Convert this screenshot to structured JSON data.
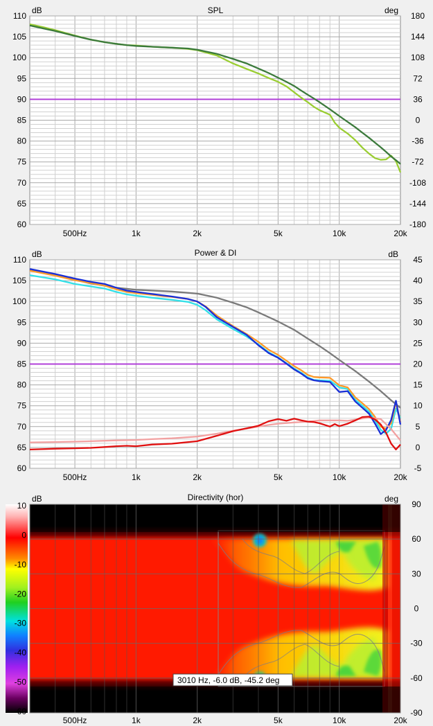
{
  "charts": [
    {
      "title": "SPL",
      "left_unit": "dB",
      "right_unit": "deg"
    },
    {
      "title": "Power & DI",
      "left_unit": "dB",
      "right_unit": "dB"
    },
    {
      "title": "Directivity (hor)",
      "left_unit": "dB",
      "right_unit": "deg",
      "tooltip": "3010 Hz, -6.0 dB, -45.2 deg"
    }
  ],
  "chart_data": [
    {
      "type": "line",
      "title": "SPL",
      "x_scale": "log",
      "xlim": [
        300,
        20000
      ],
      "x_ticks": [
        {
          "value": 500,
          "label": "500Hz"
        },
        {
          "value": 1000,
          "label": "1k"
        },
        {
          "value": 2000,
          "label": "2k"
        },
        {
          "value": 5000,
          "label": "5k"
        },
        {
          "value": 10000,
          "label": "10k"
        },
        {
          "value": 20000,
          "label": "20k"
        }
      ],
      "ylim": [
        60,
        110
      ],
      "y_ticks": [
        60,
        65,
        70,
        75,
        80,
        85,
        90,
        95,
        100,
        105,
        110
      ],
      "ylabel": "dB",
      "y2lim": [
        -180,
        180
      ],
      "y2_ticks": [
        -180,
        -144,
        -108,
        -72,
        -36,
        0,
        36,
        72,
        108,
        144,
        180
      ],
      "y2label": "deg",
      "grid": true,
      "hlines": [
        {
          "y": 90,
          "color": "#b040d8"
        }
      ],
      "series": [
        {
          "color": "#9acd32",
          "x": [
            300,
            350,
            400,
            500,
            600,
            700,
            800,
            900,
            1000,
            1200,
            1500,
            1800,
            2000,
            2500,
            3000,
            3500,
            4000,
            4500,
            5000,
            5500,
            6000,
            6500,
            7000,
            7500,
            8000,
            9000,
            9500,
            10000,
            11000,
            12000,
            13000,
            14000,
            15000,
            16000,
            17000,
            18000,
            19000,
            20000
          ],
          "y": [
            108,
            107.3,
            106.6,
            105.3,
            104.3,
            103.7,
            103.3,
            103,
            102.9,
            102.6,
            102.4,
            102.1,
            101.8,
            100.5,
            98.6,
            97.3,
            96.2,
            95.1,
            94.2,
            93.1,
            91.7,
            90.4,
            89.3,
            88.2,
            87.4,
            86.3,
            84.4,
            83.2,
            81.8,
            80.2,
            78.4,
            77,
            75.9,
            75.5,
            75.6,
            76.5,
            75.2,
            72.5
          ]
        },
        {
          "color": "#3b7a3b",
          "x": [
            300,
            350,
            400,
            500,
            600,
            700,
            800,
            900,
            1000,
            1200,
            1500,
            1800,
            2000,
            2500,
            3000,
            3500,
            4000,
            4500,
            5000,
            5500,
            6000,
            6500,
            7000,
            7500,
            8000,
            9000,
            10000,
            11000,
            12000,
            13000,
            14000,
            15000,
            16000,
            17000,
            18000,
            19000,
            20000
          ],
          "y": [
            107.7,
            107,
            106.4,
            105.2,
            104.3,
            103.7,
            103.3,
            103,
            102.8,
            102.6,
            102.4,
            102.2,
            101.9,
            100.9,
            99.7,
            98.6,
            97.4,
            96.3,
            95.2,
            94.2,
            93.2,
            92.1,
            91.1,
            90.2,
            89.3,
            87.6,
            86,
            84.6,
            83.3,
            82,
            80.8,
            79.6,
            78.5,
            77.4,
            76.3,
            75.4,
            74.5
          ]
        }
      ]
    },
    {
      "type": "line",
      "title": "Power & DI",
      "x_scale": "log",
      "xlim": [
        300,
        20000
      ],
      "x_ticks": [
        {
          "value": 500,
          "label": "500Hz"
        },
        {
          "value": 1000,
          "label": "1k"
        },
        {
          "value": 2000,
          "label": "2k"
        },
        {
          "value": 5000,
          "label": "5k"
        },
        {
          "value": 10000,
          "label": "10k"
        },
        {
          "value": 20000,
          "label": "20k"
        }
      ],
      "ylim": [
        60,
        110
      ],
      "y_ticks": [
        60,
        65,
        70,
        75,
        80,
        85,
        90,
        95,
        100,
        105,
        110
      ],
      "ylabel": "dB",
      "y2lim": [
        -5,
        45
      ],
      "y2_ticks": [
        -5,
        0,
        5,
        10,
        15,
        20,
        25,
        30,
        35,
        40,
        45
      ],
      "y2label": "dB",
      "grid": true,
      "hlines": [
        {
          "y": 85,
          "color": "#b040d8"
        }
      ],
      "series": [
        {
          "color": "#7a7a7a",
          "x": [
            300,
            400,
            500,
            600,
            800,
            1000,
            1500,
            2000,
            2500,
            3000,
            3500,
            4000,
            5000,
            6000,
            7000,
            8000,
            9000,
            10000,
            12000,
            14000,
            16000,
            18000,
            20000
          ],
          "y": [
            107.6,
            106.4,
            105.2,
            104.3,
            103.3,
            102.8,
            102.4,
            101.9,
            100.9,
            99.7,
            98.6,
            97.4,
            95.2,
            93.2,
            91.1,
            89.3,
            87.6,
            86,
            83.3,
            80.8,
            78.5,
            76.3,
            74.5
          ]
        },
        {
          "color": "#33e0e8",
          "x": [
            300,
            400,
            500,
            600,
            700,
            800,
            900,
            1000,
            1200,
            1500,
            1800,
            2000,
            2200,
            2500,
            3000,
            3500,
            4000,
            4500,
            5000,
            5500,
            6000,
            6500,
            7000,
            7500,
            8000,
            9000,
            10000,
            11000,
            12000,
            13000,
            14000,
            15000,
            16000,
            17000,
            18000,
            19000,
            20000
          ],
          "y": [
            106.3,
            105.3,
            104.2,
            103.6,
            103.1,
            102.3,
            101.7,
            101.4,
            100.9,
            100.4,
            99.9,
            99.2,
            97.9,
            95.7,
            93.4,
            91.6,
            89.7,
            87.8,
            86.6,
            85.2,
            83.9,
            82.9,
            81.8,
            81.2,
            81.1,
            81,
            79.4,
            79,
            76.4,
            75,
            73.6,
            71.5,
            69.2,
            68.3,
            69.5,
            74.3,
            72
          ]
        },
        {
          "color": "#ff9a2a",
          "x": [
            300,
            400,
            500,
            600,
            700,
            800,
            900,
            1000,
            1200,
            1500,
            1800,
            2000,
            2200,
            2500,
            3000,
            3500,
            4000,
            4500,
            5000,
            5500,
            6000,
            6500,
            7000,
            7500,
            8000,
            9000,
            10000,
            11000,
            12000,
            13000,
            14000,
            15000,
            16000,
            17000,
            18000,
            19000,
            20000
          ],
          "y": [
            107.4,
            106.2,
            105.1,
            104.4,
            103.8,
            102.9,
            102.3,
            102,
            101.6,
            101.1,
            100.6,
            100,
            98.8,
            96.6,
            94.1,
            92.2,
            90.3,
            88.4,
            87.2,
            85.8,
            84.5,
            83.5,
            82.4,
            81.9,
            81.8,
            81.7,
            79.9,
            79.4,
            77,
            75.6,
            74.2,
            72.3,
            70,
            69.5,
            70.8,
            75.8,
            71
          ]
        },
        {
          "color": "#1a2fd6",
          "x": [
            300,
            400,
            500,
            600,
            700,
            800,
            900,
            1000,
            1200,
            1500,
            1800,
            2000,
            2200,
            2500,
            3000,
            3500,
            4000,
            4500,
            5000,
            5500,
            6000,
            6500,
            7000,
            7500,
            8000,
            9000,
            10000,
            11000,
            12000,
            13000,
            14000,
            15000,
            16000,
            17000,
            18000,
            19000,
            20000
          ],
          "y": [
            107.8,
            106.6,
            105.5,
            104.7,
            104.2,
            103.3,
            102.6,
            102.3,
            101.8,
            101.2,
            100.6,
            100,
            98.7,
            96.2,
            93.9,
            92,
            89.5,
            87.6,
            86.5,
            85.1,
            83.7,
            82.7,
            81.6,
            81.1,
            80.9,
            80.7,
            78.3,
            78.5,
            76,
            74.5,
            73.1,
            70.7,
            68.2,
            69.2,
            71.6,
            76.2,
            70.5
          ]
        },
        {
          "color": "#f2a1a1",
          "x": [
            300,
            400,
            500,
            600,
            800,
            1000,
            1200,
            1500,
            2000,
            2500,
            3000,
            3500,
            4000,
            4500,
            5000,
            6000,
            7000,
            8000,
            9000,
            10000,
            11000,
            12000,
            14000,
            16000,
            18000,
            20000
          ],
          "y": [
            1.2,
            1.3,
            1.4,
            1.5,
            1.7,
            1.8,
            2.0,
            2.2,
            2.6,
            3.3,
            4.0,
            4.5,
            5.0,
            5.4,
            5.7,
            6.0,
            6.2,
            6.5,
            6.5,
            6.5,
            6.4,
            6.7,
            7.2,
            6.8,
            4.4,
            1.7
          ]
        },
        {
          "color": "#e01010",
          "x": [
            300,
            400,
            500,
            600,
            700,
            800,
            900,
            1000,
            1200,
            1500,
            2000,
            2500,
            3000,
            3500,
            4000,
            4500,
            5000,
            5500,
            6000,
            6500,
            7000,
            7500,
            8000,
            9000,
            9500,
            10000,
            11000,
            12000,
            13000,
            14000,
            15000,
            16000,
            17000,
            18000,
            19000,
            20000
          ],
          "y": [
            -0.5,
            -0.3,
            -0.2,
            -0.1,
            0.1,
            0.3,
            0.4,
            0.3,
            0.7,
            0.9,
            1.5,
            2.8,
            3.9,
            4.6,
            5.2,
            6.3,
            6.8,
            6.4,
            6.9,
            6.5,
            6.2,
            6.1,
            5.8,
            5.0,
            5.6,
            5.1,
            5.7,
            6.5,
            7.3,
            7.4,
            6.7,
            5.5,
            3.5,
            0.9,
            -0.5,
            0.7
          ]
        }
      ]
    },
    {
      "type": "heatmap",
      "title": "Directivity (hor)",
      "x_scale": "log",
      "xlim": [
        300,
        20000
      ],
      "x_ticks": [
        {
          "value": 500,
          "label": "500Hz"
        },
        {
          "value": 1000,
          "label": "1k"
        },
        {
          "value": 2000,
          "label": "2k"
        },
        {
          "value": 5000,
          "label": "5k"
        },
        {
          "value": 10000,
          "label": "10k"
        },
        {
          "value": 20000,
          "label": "20k"
        }
      ],
      "ylim": [
        -90,
        90
      ],
      "y_ticks": [
        -90,
        -60,
        -30,
        0,
        30,
        60,
        90
      ],
      "ylabel": "deg",
      "colorbar": {
        "label": "dB",
        "ticks": [
          10,
          0,
          -10,
          -20,
          -30,
          -40,
          -50,
          -60
        ],
        "colors": [
          "#ffffff",
          "#ff7070",
          "#ff0000",
          "#ff8a00",
          "#ffff00",
          "#a0f020",
          "#20d020",
          "#00e0e0",
          "#1080ff",
          "#3030e0",
          "#a020f0",
          "#e040e0",
          "#6a0060",
          "#000000"
        ]
      },
      "cursor": {
        "frequency_hz": 3010,
        "level_db": -6.0,
        "angle_deg": -45.2
      }
    }
  ]
}
